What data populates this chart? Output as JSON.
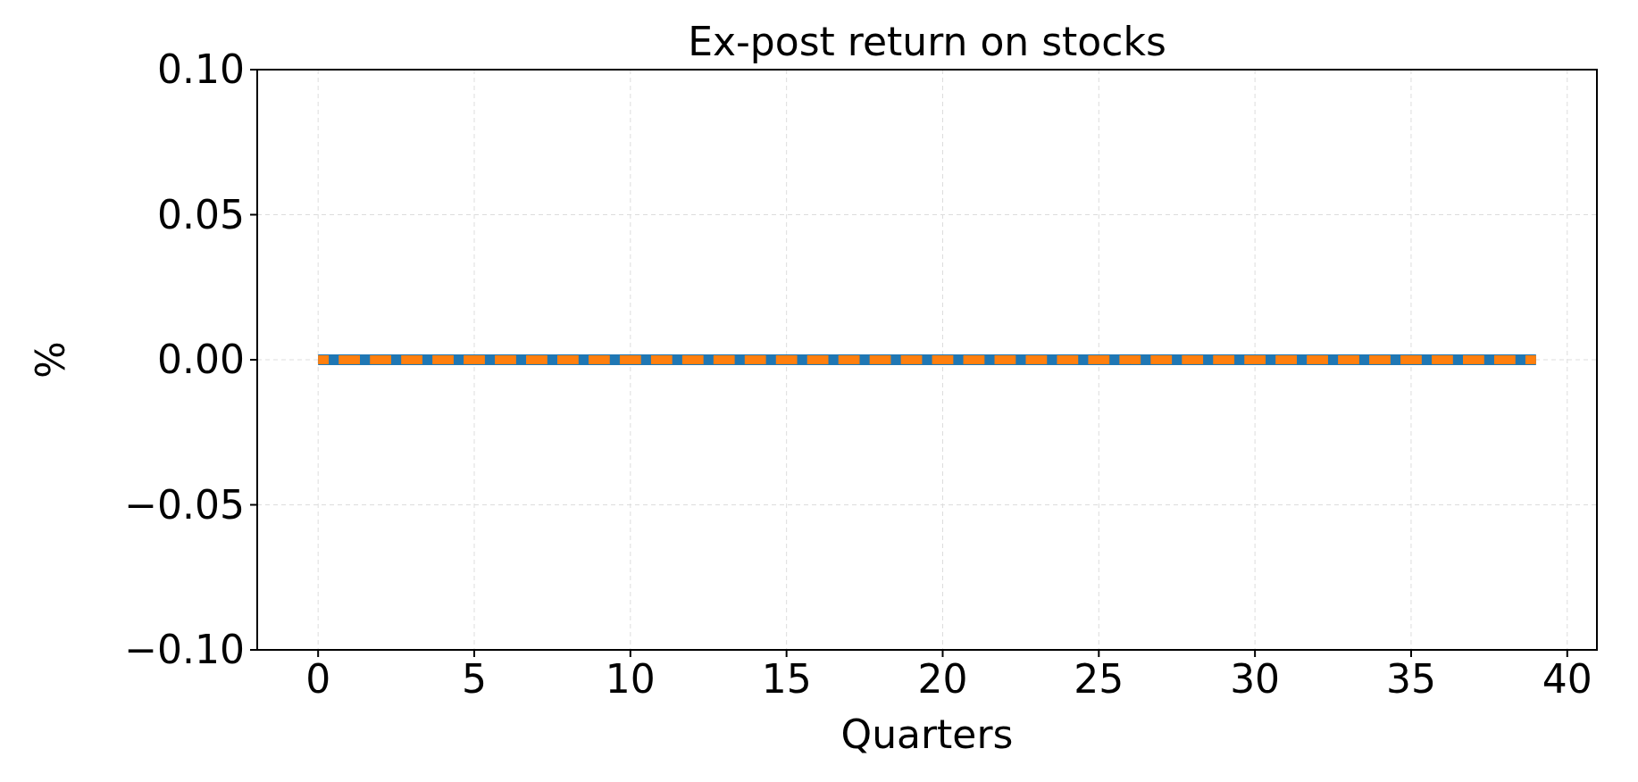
{
  "chart_data": {
    "type": "line",
    "title": "Ex-post return on stocks",
    "xlabel": "Quarters",
    "ylabel": "%",
    "x": [
      0,
      1,
      2,
      3,
      4,
      5,
      6,
      7,
      8,
      9,
      10,
      11,
      12,
      13,
      14,
      15,
      16,
      17,
      18,
      19,
      20,
      21,
      22,
      23,
      24,
      25,
      26,
      27,
      28,
      29,
      30,
      31,
      32,
      33,
      34,
      35,
      36,
      37,
      38,
      39
    ],
    "series": [
      {
        "color": "#1f77b4",
        "line_style": "solid",
        "values": [
          0,
          0,
          0,
          0,
          0,
          0,
          0,
          0,
          0,
          0,
          0,
          0,
          0,
          0,
          0,
          0,
          0,
          0,
          0,
          0,
          0,
          0,
          0,
          0,
          0,
          0,
          0,
          0,
          0,
          0,
          0,
          0,
          0,
          0,
          0,
          0,
          0,
          0,
          0,
          0
        ]
      },
      {
        "color": "#ff7f0e",
        "line_style": "dashed",
        "values": [
          0,
          0,
          0,
          0,
          0,
          0,
          0,
          0,
          0,
          0,
          0,
          0,
          0,
          0,
          0,
          0,
          0,
          0,
          0,
          0,
          0,
          0,
          0,
          0,
          0,
          0,
          0,
          0,
          0,
          0,
          0,
          0,
          0,
          0,
          0,
          0,
          0,
          0,
          0,
          0
        ]
      }
    ],
    "xlim": [
      -1.95,
      40.95
    ],
    "xticks": [
      0,
      5,
      10,
      15,
      20,
      25,
      30,
      35,
      40
    ],
    "ylim": [
      -0.1,
      0.1
    ],
    "yticks": [
      {
        "value": -0.1,
        "label": "−0.10"
      },
      {
        "value": -0.05,
        "label": "−0.05"
      },
      {
        "value": 0,
        "label": "0.00"
      },
      {
        "value": 0.05,
        "label": "0.05"
      },
      {
        "value": 0.1,
        "label": "0.10"
      }
    ],
    "grid": true,
    "legend": false
  }
}
